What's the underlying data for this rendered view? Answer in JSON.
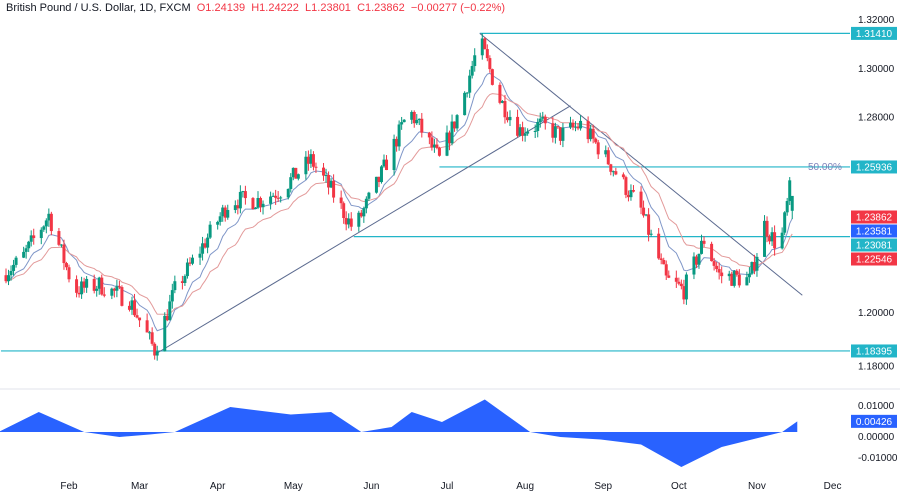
{
  "header": {
    "symbol": "British Pound / U.S. Dollar, 1D, FXCM",
    "open": "O1.24139",
    "high": "H1.24222",
    "low": "L1.23801",
    "close": "C1.23862",
    "change": "−0.00277 (−0.22%)"
  },
  "colors": {
    "up": "#089981",
    "down": "#f23645",
    "level": "#22b5c8",
    "trend": "#5b6a8f",
    "ma_fast": "#7f96c8",
    "ma_slow": "#e39a9a",
    "osc": "#2962ff"
  },
  "chart_data": {
    "type": "candlestick",
    "year_days_note_free": true,
    "price_axis": {
      "ticks": [
        "1.32000",
        "1.30000",
        "1.28000",
        "1.20000",
        "1.18000"
      ],
      "range": [
        1.175,
        1.322
      ]
    },
    "time_axis": {
      "ticks": [
        "Feb",
        "Mar",
        "Apr",
        "May",
        "Jun",
        "Jul",
        "Aug",
        "Sep",
        "Oct",
        "Nov",
        "Dec"
      ]
    },
    "close_path": [
      {
        "date": "01-05",
        "close": 1.215
      },
      {
        "date": "01-13",
        "close": 1.2212
      },
      {
        "date": "01-24",
        "close": 1.2397
      },
      {
        "date": "02-03",
        "close": 1.2089
      },
      {
        "date": "02-13",
        "close": 1.211
      },
      {
        "date": "02-25",
        "close": 1.2048
      },
      {
        "date": "03-07",
        "close": 1.1843
      },
      {
        "date": "03-15",
        "close": 1.2089
      },
      {
        "date": "03-25",
        "close": 1.2253
      },
      {
        "date": "04-06",
        "close": 1.2458
      },
      {
        "date": "04-18",
        "close": 1.2458
      },
      {
        "date": "04-26",
        "close": 1.2499
      },
      {
        "date": "05-08",
        "close": 1.2622
      },
      {
        "date": "05-16",
        "close": 1.2499
      },
      {
        "date": "05-25",
        "close": 1.2335
      },
      {
        "date": "06-04",
        "close": 1.254
      },
      {
        "date": "06-16",
        "close": 1.2827
      },
      {
        "date": "06-28",
        "close": 1.2622
      },
      {
        "date": "07-06",
        "close": 1.2827
      },
      {
        "date": "07-14",
        "close": 1.3114
      },
      {
        "date": "07-22",
        "close": 1.2868
      },
      {
        "date": "07-30",
        "close": 1.2745
      },
      {
        "date": "08-07",
        "close": 1.2766
      },
      {
        "date": "08-15",
        "close": 1.2725
      },
      {
        "date": "08-23",
        "close": 1.2766
      },
      {
        "date": "08-31",
        "close": 1.2663
      },
      {
        "date": "09-08",
        "close": 1.254
      },
      {
        "date": "09-16",
        "close": 1.2417
      },
      {
        "date": "09-26",
        "close": 1.213
      },
      {
        "date": "10-03",
        "close": 1.2089
      },
      {
        "date": "10-11",
        "close": 1.2294
      },
      {
        "date": "10-17",
        "close": 1.2151
      },
      {
        "date": "10-29",
        "close": 1.213
      },
      {
        "date": "11-04",
        "close": 1.2356
      },
      {
        "date": "11-10",
        "close": 1.2253
      },
      {
        "date": "11-14",
        "close": 1.25
      },
      {
        "date": "11-17",
        "close": 1.23862
      }
    ],
    "levels": [
      {
        "price": 1.3141,
        "label": "1.31410",
        "from": "07-14"
      },
      {
        "price": 1.25936,
        "label": "1.25936",
        "from": "06-28",
        "fib": "50.00%"
      },
      {
        "price": 1.23081,
        "label": "1.23081",
        "from": "05-25"
      },
      {
        "price": 1.18395,
        "label": "1.18395",
        "from": "01-05"
      }
    ],
    "trendlines": [
      {
        "from": {
          "date": "03-07",
          "price": 1.1825
        },
        "to": {
          "date": "08-19",
          "price": 1.2844
        }
      },
      {
        "from": {
          "date": "07-14",
          "price": 1.3141
        },
        "to": {
          "date": "11-19",
          "price": 1.2068
        }
      }
    ],
    "price_tags": [
      {
        "label": "1.23862",
        "price": 1.23862,
        "color": "#f23645"
      },
      {
        "label": "1.23581",
        "price": 1.23581,
        "color": "#2962ff"
      },
      {
        "label": "1.23081",
        "price": 1.23081,
        "color": "#22b5c8"
      },
      {
        "label": "1.22546",
        "price": 1.22546,
        "color": "#f23645"
      }
    ],
    "oscillator": {
      "ticks": [
        "0.01000",
        "0.00000",
        "-0.01000"
      ],
      "current": "0.00426",
      "path": [
        {
          "date": "01-04",
          "value": 0.0
        },
        {
          "date": "01-20",
          "value": 0.008
        },
        {
          "date": "02-07",
          "value": 0.0
        },
        {
          "date": "02-21",
          "value": -0.002
        },
        {
          "date": "03-05",
          "value": -0.001
        },
        {
          "date": "03-15",
          "value": 0.0
        },
        {
          "date": "04-06",
          "value": 0.01
        },
        {
          "date": "04-30",
          "value": 0.007
        },
        {
          "date": "05-16",
          "value": 0.008
        },
        {
          "date": "05-28",
          "value": 0.0
        },
        {
          "date": "06-09",
          "value": 0.002
        },
        {
          "date": "06-17",
          "value": 0.008
        },
        {
          "date": "06-29",
          "value": 0.004
        },
        {
          "date": "07-16",
          "value": 0.013
        },
        {
          "date": "08-03",
          "value": 0.0
        },
        {
          "date": "08-15",
          "value": -0.002
        },
        {
          "date": "08-31",
          "value": -0.003
        },
        {
          "date": "09-16",
          "value": -0.005
        },
        {
          "date": "10-02",
          "value": -0.014
        },
        {
          "date": "10-18",
          "value": -0.006
        },
        {
          "date": "11-03",
          "value": -0.002
        },
        {
          "date": "11-11",
          "value": 0.0
        },
        {
          "date": "11-17",
          "value": 0.00426
        }
      ]
    }
  }
}
